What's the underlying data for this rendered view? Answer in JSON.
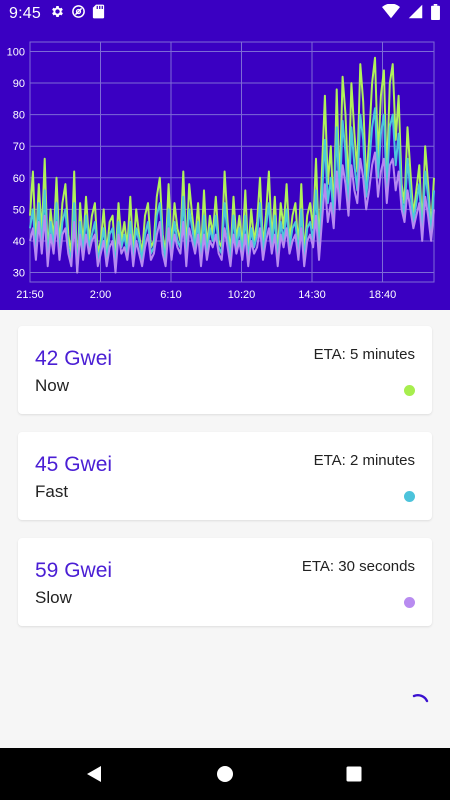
{
  "status_bar": {
    "time": "9:45",
    "left_icons": [
      "gear-icon",
      "at-sign-icon",
      "sd-card-icon"
    ],
    "right_icons": [
      "wifi-icon",
      "cellular-signal-icon",
      "battery-icon"
    ]
  },
  "chart_data": {
    "type": "line",
    "title": "",
    "xlabel": "",
    "ylabel": "",
    "x_ticks": [
      "21:50",
      "2:00",
      "6:10",
      "10:20",
      "14:30",
      "18:40"
    ],
    "y_ticks": [
      30,
      40,
      50,
      60,
      70,
      80,
      90,
      100
    ],
    "ylim": [
      27,
      103
    ],
    "grid": true,
    "series": [
      {
        "color": "#b0f25a",
        "values": [
          48,
          62,
          38,
          58,
          42,
          66,
          36,
          50,
          40,
          60,
          38,
          52,
          58,
          42,
          36,
          62,
          30,
          52,
          38,
          54,
          40,
          48,
          52,
          36,
          40,
          50,
          36,
          46,
          48,
          34,
          52,
          40,
          46,
          38,
          54,
          36,
          50,
          42,
          36,
          48,
          52,
          38,
          40,
          54,
          60,
          42,
          36,
          58,
          38,
          52,
          44,
          40,
          62,
          36,
          58,
          48,
          40,
          52,
          36,
          56,
          38,
          48,
          42,
          54,
          40,
          38,
          62,
          46,
          36,
          54,
          40,
          48,
          38,
          56,
          36,
          50,
          40,
          46,
          60,
          38,
          48,
          62,
          40,
          54,
          36,
          52,
          44,
          58,
          40,
          48,
          52,
          38,
          58,
          36,
          48,
          52,
          44,
          66,
          38,
          62,
          86,
          58,
          70,
          48,
          88,
          56,
          92,
          80,
          56,
          90,
          74,
          62,
          96,
          84,
          58,
          72,
          90,
          98,
          66,
          86,
          94,
          60,
          90,
          96,
          72,
          86,
          58,
          52,
          76,
          62,
          48,
          56,
          64,
          44,
          70,
          58,
          44,
          60
        ]
      },
      {
        "color": "#4cc7db",
        "values": [
          44,
          50,
          36,
          52,
          38,
          56,
          34,
          46,
          38,
          52,
          36,
          46,
          50,
          38,
          34,
          52,
          31,
          46,
          36,
          48,
          38,
          42,
          46,
          34,
          38,
          44,
          34,
          42,
          44,
          32,
          46,
          38,
          42,
          36,
          46,
          34,
          44,
          40,
          34,
          42,
          46,
          36,
          38,
          48,
          52,
          40,
          34,
          50,
          36,
          46,
          40,
          38,
          54,
          34,
          50,
          44,
          38,
          46,
          34,
          48,
          36,
          44,
          40,
          48,
          38,
          36,
          52,
          42,
          34,
          48,
          38,
          44,
          36,
          48,
          34,
          44,
          38,
          42,
          52,
          36,
          44,
          52,
          38,
          48,
          34,
          46,
          40,
          50,
          38,
          44,
          46,
          36,
          50,
          34,
          44,
          46,
          40,
          56,
          36,
          54,
          72,
          52,
          60,
          46,
          76,
          52,
          78,
          68,
          50,
          76,
          64,
          56,
          80,
          72,
          54,
          64,
          76,
          82,
          60,
          74,
          80,
          56,
          76,
          80,
          64,
          74,
          54,
          48,
          66,
          56,
          46,
          52,
          58,
          42,
          62,
          54,
          42,
          56
        ]
      },
      {
        "color": "#b78bf0",
        "values": [
          40,
          44,
          34,
          46,
          36,
          48,
          32,
          42,
          36,
          46,
          34,
          42,
          44,
          36,
          32,
          46,
          30,
          42,
          34,
          42,
          36,
          40,
          42,
          32,
          36,
          40,
          32,
          38,
          40,
          30,
          42,
          36,
          38,
          34,
          42,
          32,
          40,
          36,
          32,
          38,
          42,
          34,
          36,
          42,
          46,
          36,
          32,
          44,
          34,
          42,
          38,
          36,
          46,
          32,
          44,
          40,
          36,
          42,
          32,
          42,
          34,
          40,
          38,
          42,
          36,
          34,
          44,
          38,
          32,
          42,
          36,
          40,
          34,
          42,
          32,
          40,
          36,
          38,
          44,
          34,
          40,
          44,
          36,
          42,
          32,
          42,
          38,
          44,
          36,
          40,
          42,
          34,
          44,
          32,
          40,
          42,
          38,
          48,
          34,
          46,
          58,
          46,
          52,
          44,
          62,
          50,
          64,
          58,
          48,
          64,
          56,
          52,
          66,
          60,
          50,
          56,
          64,
          68,
          54,
          62,
          66,
          52,
          64,
          66,
          56,
          62,
          50,
          46,
          56,
          50,
          44,
          48,
          52,
          40,
          54,
          48,
          40,
          50
        ]
      }
    ]
  },
  "cards": [
    {
      "price": "42 Gwei",
      "label": "Now",
      "eta": "ETA: 5 minutes",
      "dot_color": "#a7ee4e"
    },
    {
      "price": "45 Gwei",
      "label": "Fast",
      "eta": "ETA: 2 minutes",
      "dot_color": "#4cc3db"
    },
    {
      "price": "59 Gwei",
      "label": "Slow",
      "eta": "ETA: 30 seconds",
      "dot_color": "#b88bf0"
    }
  ],
  "nav_bar": {
    "icons": [
      "back-icon",
      "home-icon",
      "recents-icon"
    ]
  }
}
